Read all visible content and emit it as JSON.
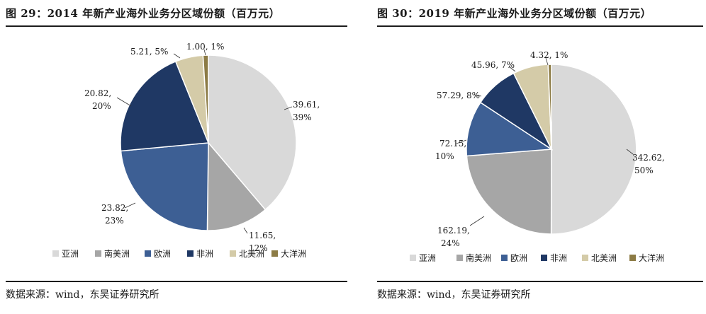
{
  "chart_data": [
    {
      "type": "pie",
      "title": "图 29：2014 年新产业海外业务分区域份额（百万元）",
      "categories": [
        "亚洲",
        "南美洲",
        "欧洲",
        "非洲",
        "北美洲",
        "大洋洲"
      ],
      "values": [
        39.61,
        11.65,
        23.82,
        20.82,
        5.21,
        1.0
      ],
      "percents": [
        "39%",
        "12%",
        "23%",
        "20%",
        "5%",
        "1%"
      ],
      "value_labels": [
        "39.61,",
        "11.65,",
        "23.82,",
        "20.82,",
        "5.21, 5%",
        "1.00, 1%"
      ],
      "pct_labels": [
        "39%",
        "12%",
        "23%",
        "20%",
        "",
        ""
      ],
      "colors": [
        "#d9d9d9",
        "#a6a6a6",
        "#3d5f94",
        "#1f3864",
        "#d4cba8",
        "#8c7b45"
      ],
      "legend_position": "bottom",
      "source": "数据来源：wind，东吴证券研究所"
    },
    {
      "type": "pie",
      "title": "图 30：2019 年新产业海外业务分区域份额（百万元）",
      "categories": [
        "亚洲",
        "南美洲",
        "欧洲",
        "非洲",
        "北美洲",
        "大洋洲"
      ],
      "values": [
        342.62,
        162.19,
        72.15,
        57.29,
        45.96,
        4.32
      ],
      "percents": [
        "50%",
        "24%",
        "10%",
        "8%",
        "7%",
        "1%"
      ],
      "value_labels": [
        "342.62,",
        "162.19,",
        "72.15,",
        "57.29, 8%",
        "45.96, 7%",
        "4.32, 1%"
      ],
      "pct_labels": [
        "50%",
        "24%",
        "10%",
        "",
        "",
        ""
      ],
      "colors": [
        "#d9d9d9",
        "#a6a6a6",
        "#3d5f94",
        "#1f3864",
        "#d4cba8",
        "#8c7b45"
      ],
      "legend_position": "bottom",
      "source": "数据来源：wind，东吴证券研究所"
    }
  ]
}
